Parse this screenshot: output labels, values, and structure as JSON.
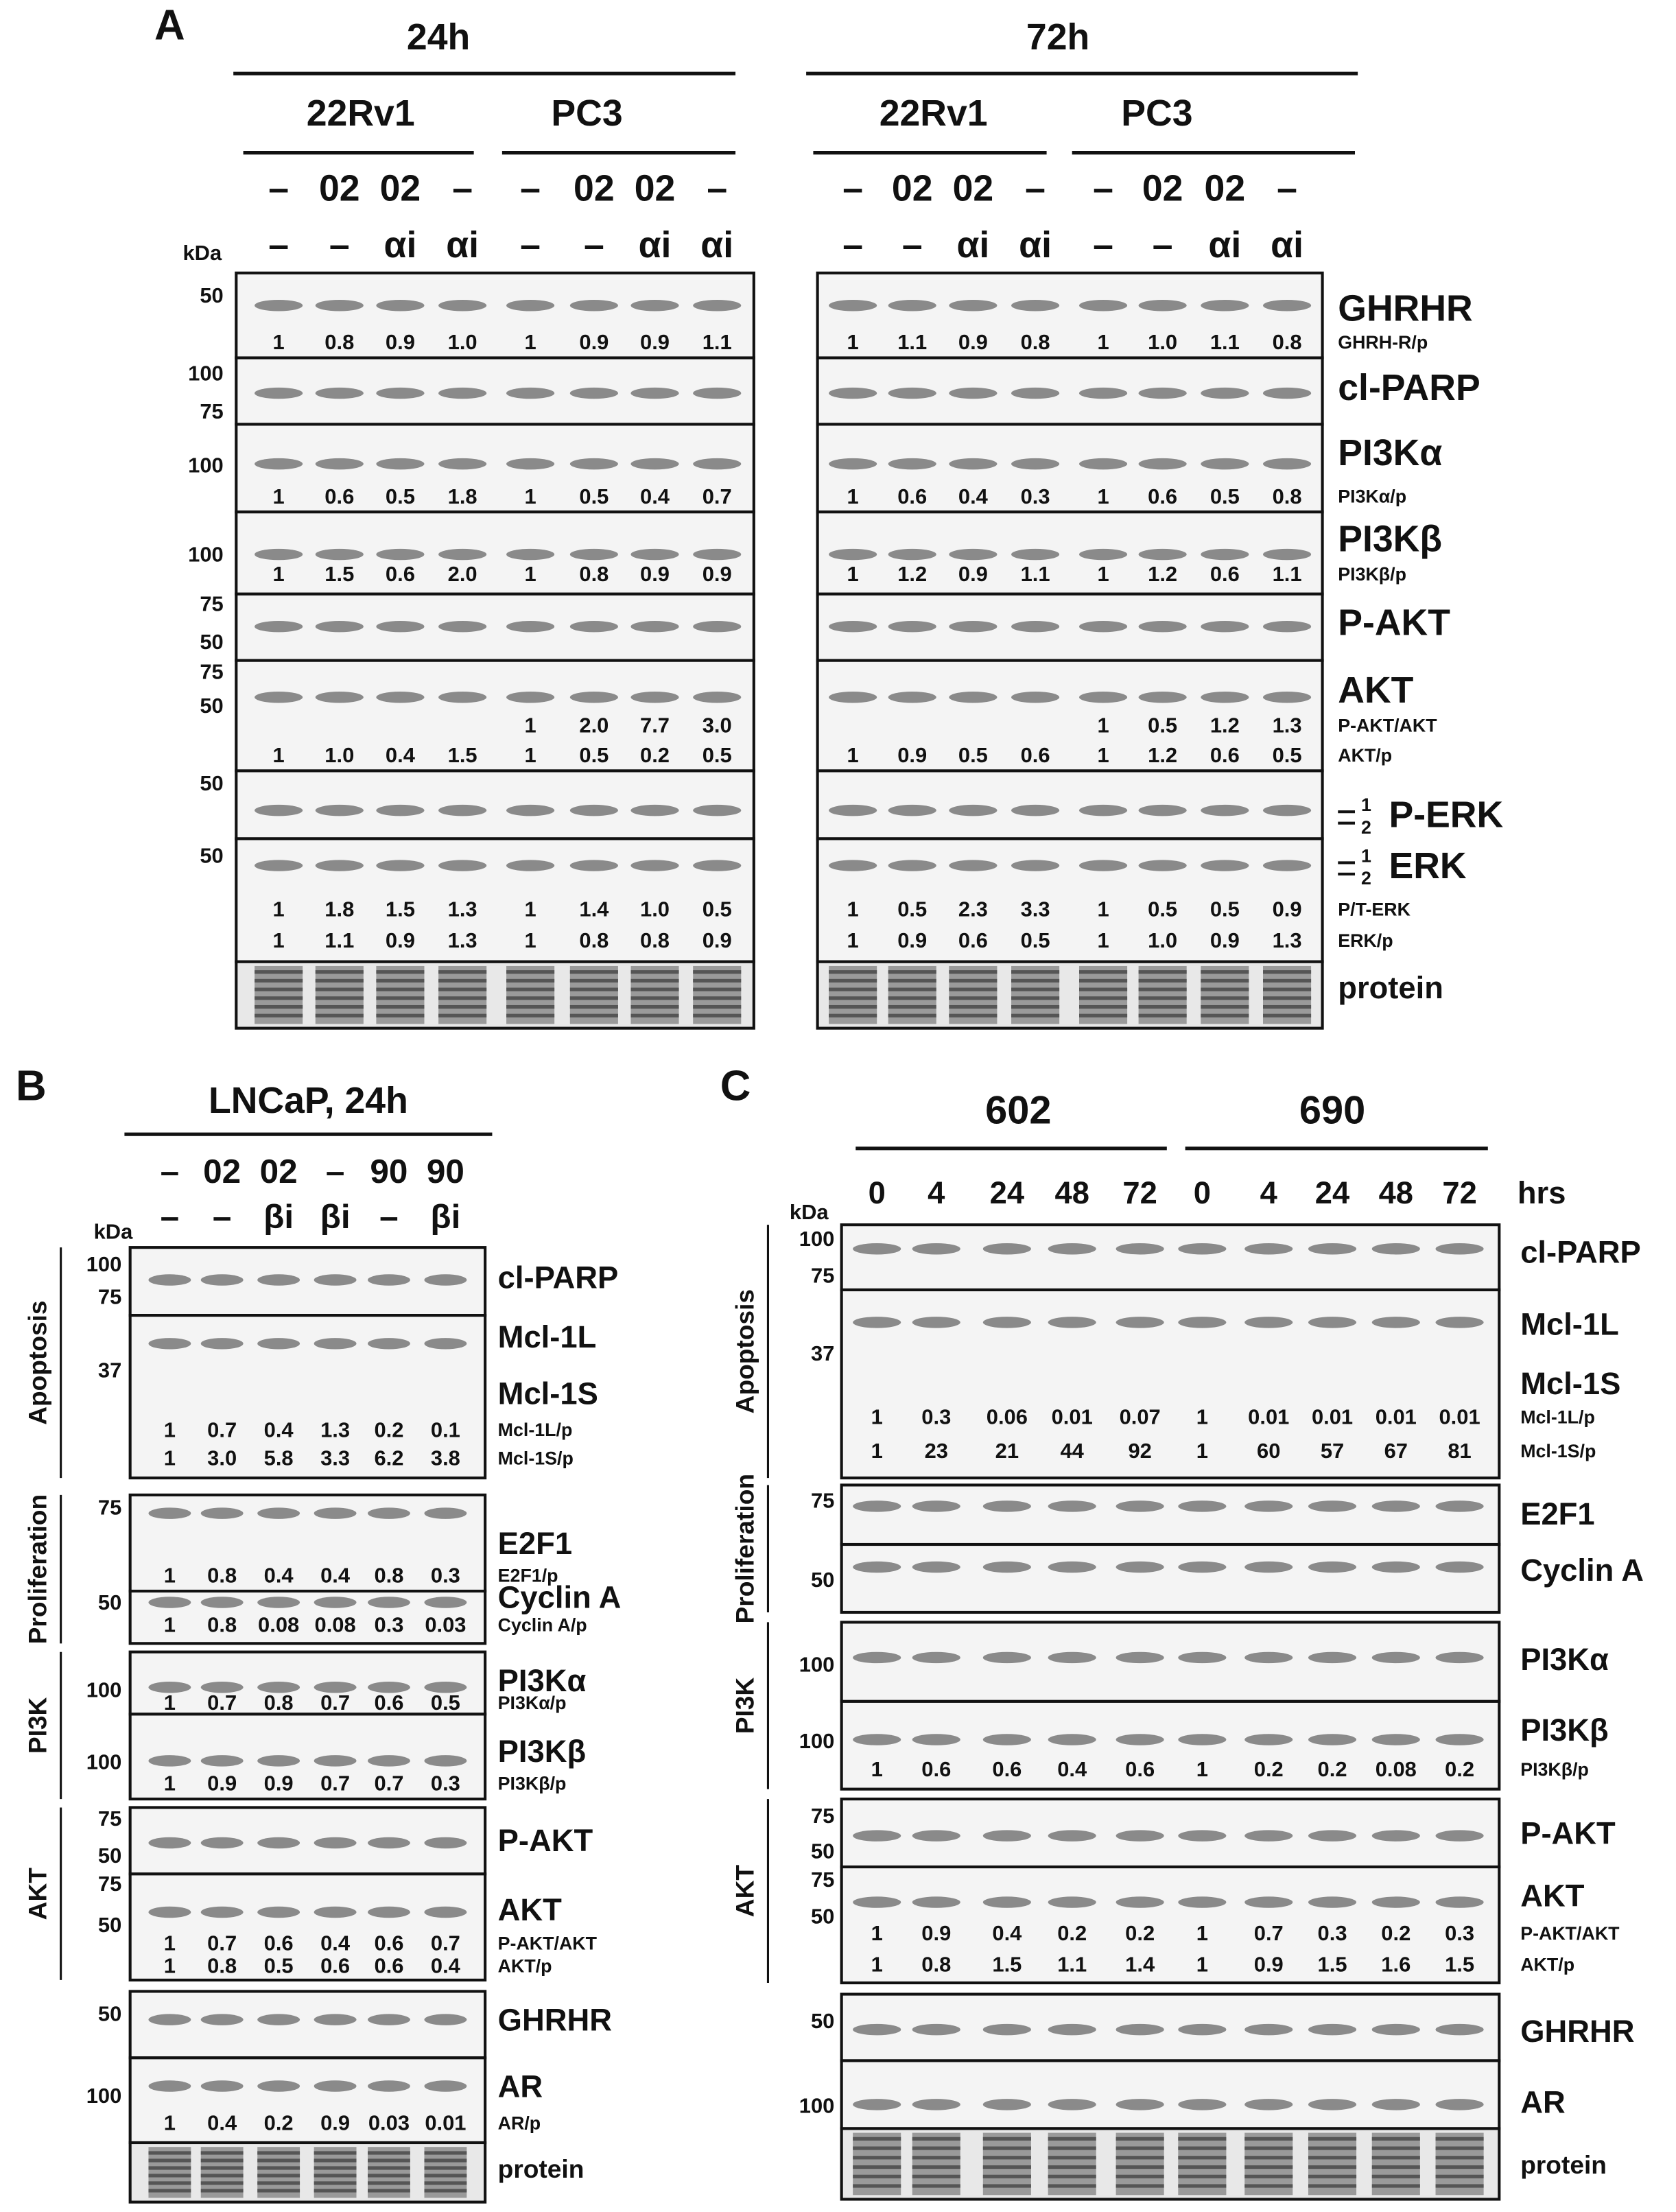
{
  "panel_a": {
    "label": "A",
    "kda_label": "kDa",
    "groups": [
      {
        "title": "24h",
        "cell_lines": [
          "22Rv1",
          "PC3"
        ]
      },
      {
        "title": "72h",
        "cell_lines": [
          "22Rv1",
          "PC3"
        ]
      }
    ],
    "treatment_rows": [
      [
        "–",
        "02",
        "02",
        "–",
        "–",
        "02",
        "02",
        "–",
        "–",
        "02",
        "02",
        "–",
        "–",
        "02",
        "02",
        "–"
      ],
      [
        "–",
        "–",
        "αi",
        "αi",
        "–",
        "–",
        "αi",
        "αi",
        "–",
        "–",
        "αi",
        "αi",
        "–",
        "–",
        "αi",
        "αi"
      ]
    ],
    "sections": [
      {
        "blots": [
          {
            "labels": [
              "GHRHR"
            ],
            "markers": [
              "50"
            ],
            "quant": [
              {
                "label": "GHRH-R/p",
                "values": [
                  "1",
                  "0.8",
                  "0.9",
                  "1.0",
                  "1",
                  "0.9",
                  "0.9",
                  "1.1",
                  "1",
                  "1.1",
                  "0.9",
                  "0.8",
                  "1",
                  "1.0",
                  "1.1",
                  "0.8"
                ]
              }
            ]
          },
          {
            "labels": [
              "cl-PARP"
            ],
            "markers": [
              "100",
              "75"
            ]
          },
          {
            "labels": [
              "PI3Kα"
            ],
            "markers": [
              "100"
            ],
            "quant": [
              {
                "label": "PI3Kα/p",
                "values": [
                  "1",
                  "0.6",
                  "0.5",
                  "1.8",
                  "1",
                  "0.5",
                  "0.4",
                  "0.7",
                  "1",
                  "0.6",
                  "0.4",
                  "0.3",
                  "1",
                  "0.6",
                  "0.5",
                  "0.8"
                ]
              }
            ]
          },
          {
            "labels": [
              "PI3Kβ"
            ],
            "markers": [
              "100"
            ],
            "quant": [
              {
                "label": "PI3Kβ/p",
                "values": [
                  "1",
                  "1.5",
                  "0.6",
                  "2.0",
                  "1",
                  "0.8",
                  "0.9",
                  "0.9",
                  "1",
                  "1.2",
                  "0.9",
                  "1.1",
                  "1",
                  "1.2",
                  "0.6",
                  "1.1"
                ]
              }
            ]
          },
          {
            "labels": [
              "P-AKT"
            ],
            "markers": [
              "75",
              "50"
            ]
          },
          {
            "labels": [
              "AKT"
            ],
            "markers": [
              "75",
              "50"
            ],
            "quant": [
              {
                "label": "P-AKT/AKT",
                "values": [
                  null,
                  null,
                  null,
                  null,
                  "1",
                  "2.0",
                  "7.7",
                  "3.0",
                  null,
                  null,
                  null,
                  null,
                  "1",
                  "0.5",
                  "1.2",
                  "1.3"
                ]
              },
              {
                "label": "AKT/p",
                "values": [
                  "1",
                  "1.0",
                  "0.4",
                  "1.5",
                  "1",
                  "0.5",
                  "0.2",
                  "0.5",
                  "1",
                  "0.9",
                  "0.5",
                  "0.6",
                  "1",
                  "1.2",
                  "0.6",
                  "0.5"
                ]
              }
            ]
          },
          {
            "labels": [
              "P-ERK"
            ],
            "markers": [
              "50"
            ],
            "band_labels": [
              "1",
              "2"
            ]
          },
          {
            "labels": [
              "ERK"
            ],
            "markers": [
              "50"
            ],
            "band_labels": [
              "1",
              "2"
            ],
            "quant": [
              {
                "label": "P/T-ERK",
                "values": [
                  "1",
                  "1.8",
                  "1.5",
                  "1.3",
                  "1",
                  "1.4",
                  "1.0",
                  "0.5",
                  "1",
                  "0.5",
                  "2.3",
                  "3.3",
                  "1",
                  "0.5",
                  "0.5",
                  "0.9"
                ]
              },
              {
                "label": "ERK/p",
                "values": [
                  "1",
                  "1.1",
                  "0.9",
                  "1.3",
                  "1",
                  "0.8",
                  "0.8",
                  "0.9",
                  "1",
                  "0.9",
                  "0.6",
                  "0.5",
                  "1",
                  "1.0",
                  "0.9",
                  "1.3"
                ]
              }
            ]
          },
          {
            "labels": [
              "protein"
            ],
            "protein": true
          }
        ]
      }
    ]
  },
  "panel_b": {
    "label": "B",
    "title": "LNCaP, 24h",
    "kda_label": "kDa",
    "treatment_rows": [
      [
        "–",
        "02",
        "02",
        "–",
        "90",
        "90"
      ],
      [
        "–",
        "–",
        "βi",
        "βi",
        "–",
        "βi"
      ]
    ],
    "sections": [
      {
        "name": "Apoptosis",
        "blots": [
          {
            "labels": [
              "cl-PARP"
            ],
            "markers": [
              "100",
              "75"
            ]
          },
          {
            "labels": [
              "Mcl-1L",
              "Mcl-1S"
            ],
            "markers": [
              "37"
            ],
            "quant": [
              {
                "label": "Mcl-1L/p",
                "values": [
                  "1",
                  "0.7",
                  "0.4",
                  "1.3",
                  "0.2",
                  "0.1"
                ]
              },
              {
                "label": "Mcl-1S/p",
                "values": [
                  "1",
                  "3.0",
                  "5.8",
                  "3.3",
                  "6.2",
                  "3.8"
                ]
              }
            ]
          }
        ]
      },
      {
        "name": "Proliferation",
        "blots": [
          {
            "labels": [
              "E2F1"
            ],
            "markers": [
              "75"
            ],
            "quant": [
              {
                "label": "E2F1/p",
                "values": [
                  "1",
                  "0.8",
                  "0.4",
                  "0.4",
                  "0.8",
                  "0.3"
                ]
              }
            ]
          },
          {
            "labels": [
              "Cyclin A"
            ],
            "markers": [
              "50"
            ],
            "quant": [
              {
                "label": "Cyclin A/p",
                "values": [
                  "1",
                  "0.8",
                  "0.08",
                  "0.08",
                  "0.3",
                  "0.03"
                ]
              }
            ]
          }
        ]
      },
      {
        "name": "PI3K",
        "blots": [
          {
            "labels": [
              "PI3Kα"
            ],
            "markers": [
              "100"
            ],
            "quant": [
              {
                "label": "PI3Kα/p",
                "values": [
                  "1",
                  "0.7",
                  "0.8",
                  "0.7",
                  "0.6",
                  "0.5"
                ]
              }
            ]
          },
          {
            "labels": [
              "PI3Kβ"
            ],
            "markers": [
              "100"
            ],
            "quant": [
              {
                "label": "PI3Kβ/p",
                "values": [
                  "1",
                  "0.9",
                  "0.9",
                  "0.7",
                  "0.7",
                  "0.3"
                ]
              }
            ]
          }
        ]
      },
      {
        "name": "AKT",
        "blots": [
          {
            "labels": [
              "P-AKT"
            ],
            "markers": [
              "75",
              "50"
            ]
          },
          {
            "labels": [
              "AKT"
            ],
            "markers": [
              "75",
              "50"
            ],
            "quant": [
              {
                "label": "P-AKT/AKT",
                "values": [
                  "1",
                  "0.7",
                  "0.6",
                  "0.4",
                  "0.6",
                  "0.7"
                ]
              },
              {
                "label": "AKT/p",
                "values": [
                  "1",
                  "0.8",
                  "0.5",
                  "0.6",
                  "0.6",
                  "0.4"
                ]
              }
            ]
          }
        ]
      },
      {
        "blots": [
          {
            "labels": [
              "GHRHR"
            ],
            "markers": [
              "50"
            ]
          },
          {
            "labels": [
              "AR"
            ],
            "markers": [
              "100"
            ],
            "quant": [
              {
                "label": "AR/p",
                "values": [
                  "1",
                  "0.4",
                  "0.2",
                  "0.9",
                  "0.03",
                  "0.01"
                ]
              }
            ]
          },
          {
            "labels": [
              "protein"
            ],
            "protein": true
          }
        ]
      }
    ]
  },
  "panel_c": {
    "label": "C",
    "kda_label": "kDa",
    "groups": [
      {
        "title": "602"
      },
      {
        "title": "690"
      }
    ],
    "time_points": [
      "0",
      "4",
      "24",
      "48",
      "72",
      "0",
      "4",
      "24",
      "48",
      "72"
    ],
    "time_unit": "hrs",
    "sections": [
      {
        "name": "Apoptosis",
        "blots": [
          {
            "labels": [
              "cl-PARP"
            ],
            "markers": [
              "100",
              "75"
            ]
          },
          {
            "labels": [
              "Mcl-1L",
              "Mcl-1S"
            ],
            "markers": [
              "37"
            ],
            "quant": [
              {
                "label": "Mcl-1L/p",
                "values": [
                  "1",
                  "0.3",
                  "0.06",
                  "0.01",
                  "0.07",
                  "1",
                  "0.01",
                  "0.01",
                  "0.01",
                  "0.01"
                ]
              },
              {
                "label": "Mcl-1S/p",
                "values": [
                  "1",
                  "23",
                  "21",
                  "44",
                  "92",
                  "1",
                  "60",
                  "57",
                  "67",
                  "81"
                ]
              }
            ]
          }
        ]
      },
      {
        "name": "Proliferation",
        "blots": [
          {
            "labels": [
              "E2F1"
            ],
            "markers": [
              "75"
            ]
          },
          {
            "labels": [
              "Cyclin A"
            ],
            "markers": [
              "50"
            ]
          }
        ]
      },
      {
        "name": "PI3K",
        "blots": [
          {
            "labels": [
              "PI3Kα"
            ],
            "markers": [
              "100"
            ]
          },
          {
            "labels": [
              "PI3Kβ"
            ],
            "markers": [
              "100"
            ],
            "quant": [
              {
                "label": "PI3Kβ/p",
                "values": [
                  "1",
                  "0.6",
                  "0.6",
                  "0.4",
                  "0.6",
                  "1",
                  "0.2",
                  "0.2",
                  "0.08",
                  "0.2"
                ]
              }
            ]
          }
        ]
      },
      {
        "name": "AKT",
        "blots": [
          {
            "labels": [
              "P-AKT"
            ],
            "markers": [
              "75",
              "50"
            ]
          },
          {
            "labels": [
              "AKT"
            ],
            "markers": [
              "75",
              "50"
            ],
            "quant": [
              {
                "label": "P-AKT/AKT",
                "values": [
                  "1",
                  "0.9",
                  "0.4",
                  "0.2",
                  "0.2",
                  "1",
                  "0.7",
                  "0.3",
                  "0.2",
                  "0.3"
                ]
              },
              {
                "label": "AKT/p",
                "values": [
                  "1",
                  "0.8",
                  "1.5",
                  "1.1",
                  "1.4",
                  "1",
                  "0.9",
                  "1.5",
                  "1.6",
                  "1.5"
                ]
              }
            ]
          }
        ]
      },
      {
        "blots": [
          {
            "labels": [
              "GHRHR"
            ],
            "markers": [
              "50"
            ]
          },
          {
            "labels": [
              "AR"
            ],
            "markers": [
              "100"
            ]
          },
          {
            "labels": [
              "protein"
            ],
            "protein": true
          }
        ]
      }
    ]
  }
}
